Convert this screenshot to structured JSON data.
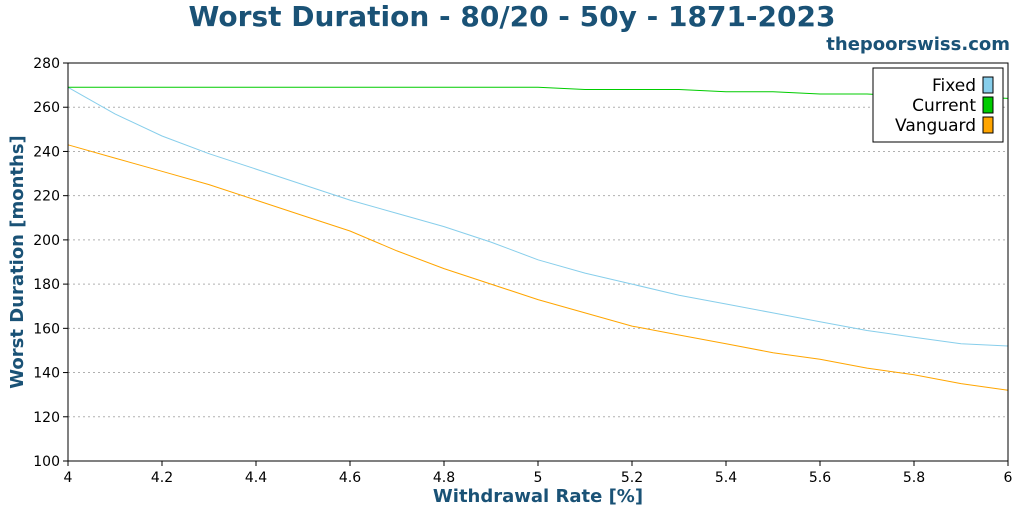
{
  "header": {
    "title": "Worst Duration - 80/20 - 50y - 1871-2023",
    "site": "thepoorswiss.com"
  },
  "chart_data": {
    "type": "line",
    "title": "Worst Duration - 80/20 - 50y - 1871-2023",
    "xlabel": "Withdrawal Rate [%]",
    "ylabel": "Worst Duration [months]",
    "xlim": [
      4,
      6
    ],
    "ylim": [
      100,
      280
    ],
    "xticks": [
      "4",
      "4.2",
      "4.4",
      "4.6",
      "4.8",
      "5",
      "5.2",
      "5.4",
      "5.6",
      "5.8",
      "6"
    ],
    "yticks": [
      "100",
      "120",
      "140",
      "160",
      "180",
      "200",
      "220",
      "240",
      "260",
      "280"
    ],
    "grid": "horizontal dotted",
    "legend_position": "top-right",
    "x": [
      4.0,
      4.1,
      4.2,
      4.3,
      4.4,
      4.5,
      4.6,
      4.7,
      4.8,
      4.9,
      5.0,
      5.1,
      5.2,
      5.3,
      5.4,
      5.5,
      5.6,
      5.7,
      5.8,
      5.9,
      6.0
    ],
    "series": [
      {
        "name": "Fixed",
        "color": "#87ceeb",
        "values": [
          269,
          257,
          247,
          239,
          232,
          225,
          218,
          212,
          206,
          199,
          191,
          185,
          180,
          175,
          171,
          167,
          163,
          159,
          156,
          153,
          152
        ]
      },
      {
        "name": "Current",
        "color": "#00cc00",
        "values": [
          269,
          269,
          269,
          269,
          269,
          269,
          269,
          269,
          269,
          269,
          269,
          268,
          268,
          268,
          267,
          267,
          266,
          266,
          265,
          265,
          264
        ]
      },
      {
        "name": "Vanguard",
        "color": "#ffa500",
        "values": [
          243,
          237,
          231,
          225,
          218,
          211,
          204,
          195,
          187,
          180,
          173,
          167,
          161,
          157,
          153,
          149,
          146,
          142,
          139,
          135,
          132
        ]
      }
    ]
  }
}
